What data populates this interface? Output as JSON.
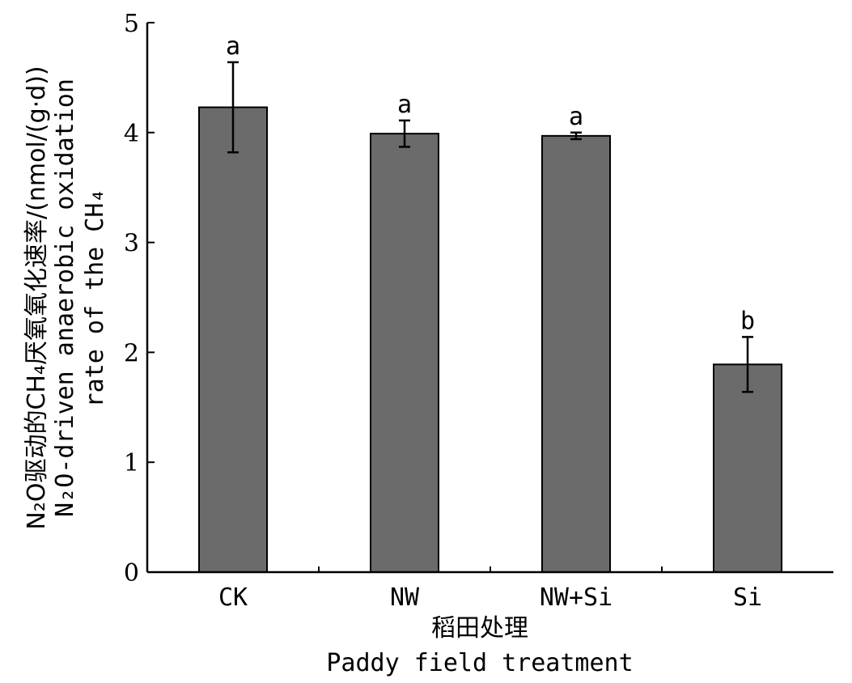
{
  "chart_data": {
    "type": "bar",
    "categories": [
      "CK",
      "NW",
      "NW+Si",
      "Si"
    ],
    "values": [
      4.23,
      3.99,
      3.97,
      1.89
    ],
    "errors": [
      0.41,
      0.12,
      0.03,
      0.25
    ],
    "significance": [
      "a",
      "a",
      "a",
      "b"
    ],
    "ylim": [
      0,
      5
    ],
    "yticks": [
      "0",
      "1",
      "2",
      "3",
      "4",
      "5"
    ],
    "ylabel_cn": "N₂O驱动的CH₄厌氧氧化速率/(nmol/(g·d))",
    "ylabel_en_line1": "N₂O-driven anaerobic oxidation",
    "ylabel_en_line2": "rate of the CH₄",
    "xlabel_cn": "稻田处理",
    "xlabel_en": "Paddy field treatment",
    "grid": false,
    "bar_color": "#6b6b6b"
  }
}
